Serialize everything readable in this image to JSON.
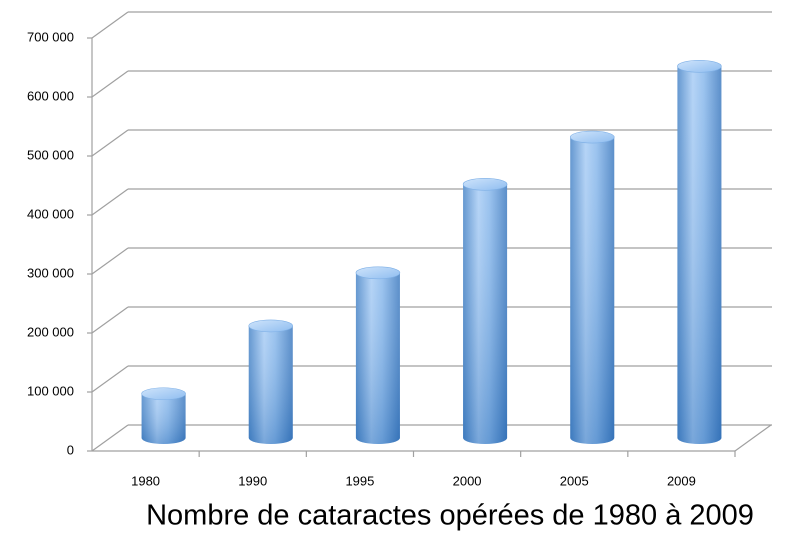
{
  "chart_data": {
    "type": "bar",
    "title": "Nombre de cataractes opérées de 1980 à 2009",
    "categories": [
      "1980",
      "1990",
      "1995",
      "2000",
      "2005",
      "2009"
    ],
    "values": [
      75000,
      190000,
      280000,
      430000,
      510000,
      630000
    ],
    "color": "#5b9bd5",
    "ylim": [
      0,
      700000
    ],
    "yticks": [
      0,
      {
        "value": 100000,
        "label": "100 000"
      },
      {
        "value": 200000,
        "label": "200 000"
      },
      {
        "value": 300000,
        "label": "300 000"
      },
      {
        "value": 400000,
        "label": "400 000"
      },
      {
        "value": 500000,
        "label": "500 000"
      },
      {
        "value": 600000,
        "label": "600 000"
      },
      {
        "value": 700000,
        "label": "700 000"
      }
    ],
    "grid": true
  }
}
